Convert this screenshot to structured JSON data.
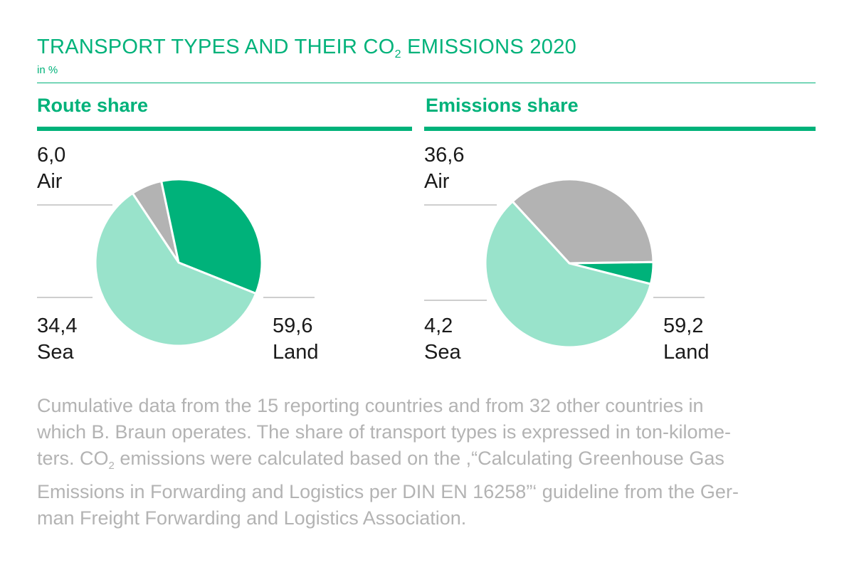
{
  "title": {
    "pre": "TRANSPORT TYPES AND THEIR CO",
    "sub": "2",
    "post": " EMISSIONS 2020",
    "unit": "in %"
  },
  "colors": {
    "accent": "#00b27a",
    "air": "#b3b3b3",
    "sea": "#00b27a",
    "land": "#99e3cb",
    "footnote": "#b3b3b3"
  },
  "chart_data": [
    {
      "type": "pie",
      "title": "Route share",
      "slices": [
        {
          "label": "Air",
          "value": 6.0,
          "display": "6,0",
          "color": "#b3b3b3"
        },
        {
          "label": "Sea",
          "value": 34.4,
          "display": "34,4",
          "color": "#00b27a"
        },
        {
          "label": "Land",
          "value": 59.6,
          "display": "59,6",
          "color": "#99e3cb"
        }
      ]
    },
    {
      "type": "pie",
      "title": "Emissions share",
      "slices": [
        {
          "label": "Air",
          "value": 36.6,
          "display": "36,6",
          "color": "#b3b3b3"
        },
        {
          "label": "Sea",
          "value": 4.2,
          "display": "4,2",
          "color": "#00b27a"
        },
        {
          "label": "Land",
          "value": 59.2,
          "display": "59,2",
          "color": "#99e3cb"
        }
      ]
    }
  ],
  "footnote": {
    "l1": "Cumulative data from the 15 reporting countries and from 32 other countries in",
    "l2": "which B. Braun operates. The share of transport types is expressed in ton-kilome-",
    "l3_pre": "ters. CO",
    "l3_sub": "2",
    "l3_post": " emissions were calculated based on the ,“Calculating Greenhouse Gas",
    "l4": "Emissions in Forwarding and Logistics per DIN EN 16258”‘ guideline from the Ger-",
    "l5": "man Freight Forwarding and Logistics Association."
  }
}
